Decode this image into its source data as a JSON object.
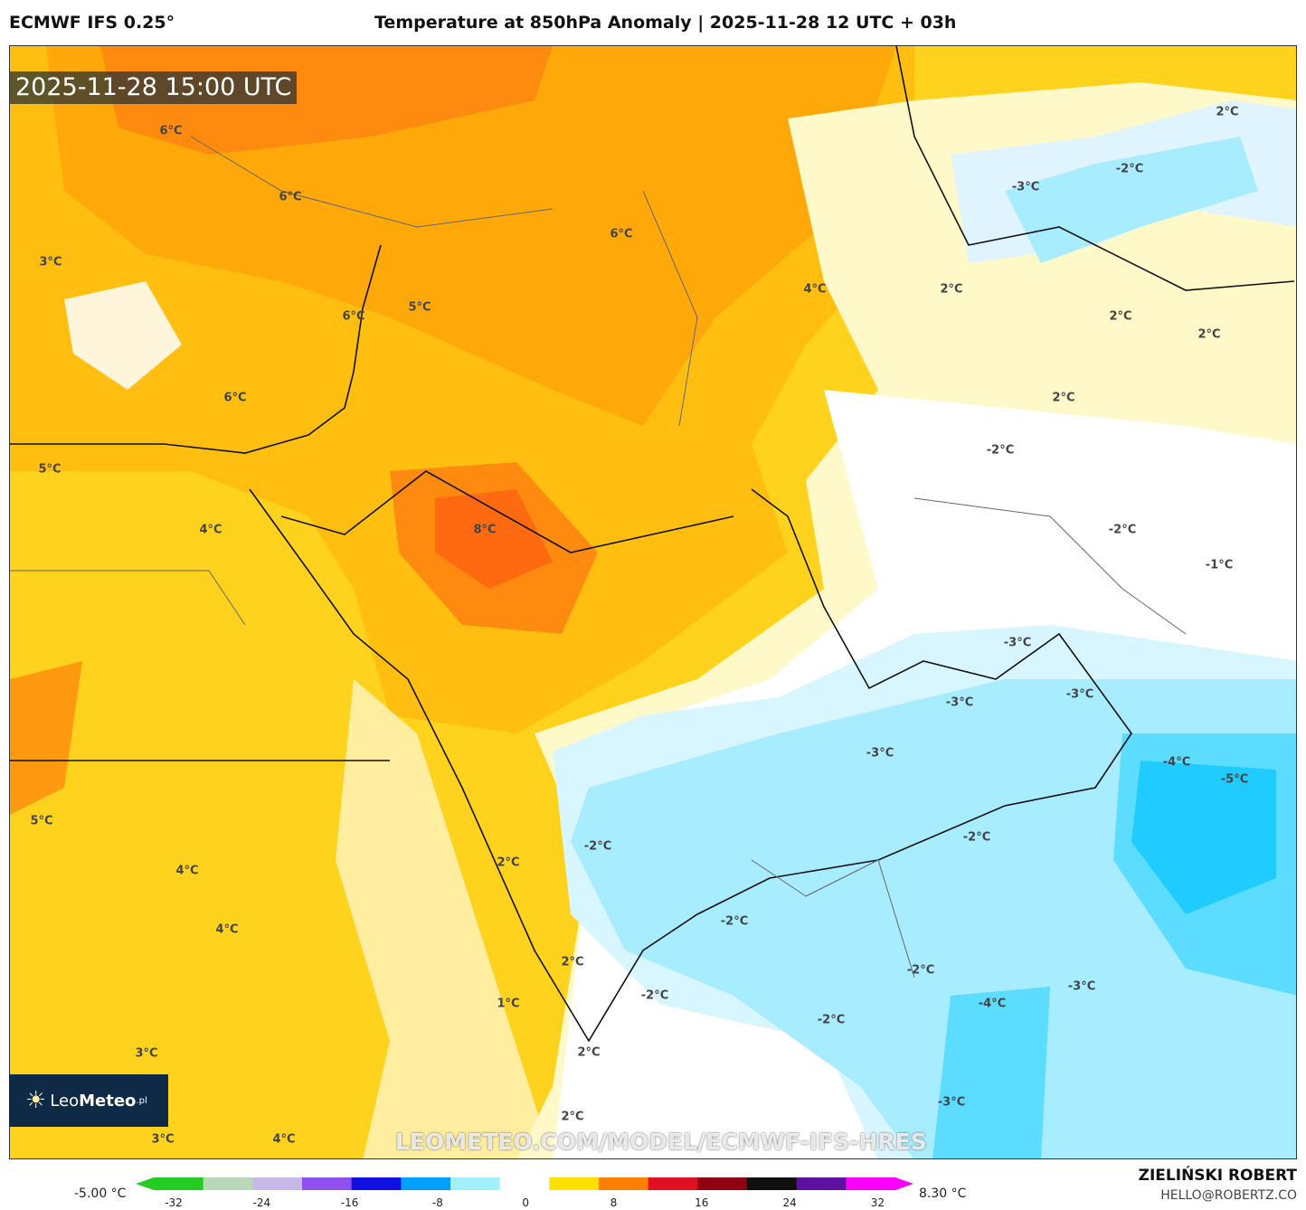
{
  "header": {
    "model": "ECMWF IFS 0.25°",
    "title": "Temperature at 850hPa Anomaly | 2025-11-28 12 UTC + 03h"
  },
  "map": {
    "timestamp": "2025-11-28 15:00 UTC",
    "watermark_url": "LEOMETEO.COM/MODEL/ECMWF-IFS-HRES",
    "labels": [
      "6°C",
      "6°C",
      "3°C",
      "6°C",
      "5°C",
      "6°C",
      "4°C",
      "2°C",
      "2°C",
      "2°C",
      "2°C",
      "-2°C",
      "-3°C",
      "6°C",
      "2°C",
      "-2°C",
      "5°C",
      "4°C",
      "8°C",
      "-2°C",
      "-1°C",
      "-3°C",
      "-3°C",
      "-3°C",
      "-3°C",
      "-4°C",
      "-5°C",
      "5°C",
      "-2°C",
      "-2°C",
      "2°C",
      "4°C",
      "4°C",
      "-2°C",
      "2°C",
      "-2°C",
      "-2°C",
      "-3°C",
      "1°C",
      "-4°C",
      "-2°C",
      "3°C",
      "2°C",
      "-3°C",
      "2°C",
      "3°C",
      "4°C"
    ]
  },
  "logo": {
    "text_light": "Leo",
    "text_bold": "Meteo",
    "suffix": ".pl"
  },
  "colorbar": {
    "min_label": "-5.00 °C",
    "max_label": "8.30 °C",
    "ticks": [
      "-32",
      "-24",
      "-16",
      "-8",
      "0",
      "8",
      "16",
      "24",
      "32"
    ],
    "colors": [
      "#22cc22",
      "#b8d8b8",
      "#c8b8e8",
      "#9050f0",
      "#1010e0",
      "#00a0ff",
      "#a0f0ff",
      "#ffffff",
      "#ffe000",
      "#ff8000",
      "#e01020",
      "#900010",
      "#101010",
      "#6010a0",
      "#ff00ff"
    ]
  },
  "credits": {
    "author": "ZIELIŃSKI ROBERT",
    "email": "HELLO@ROBERTZ.CO"
  }
}
